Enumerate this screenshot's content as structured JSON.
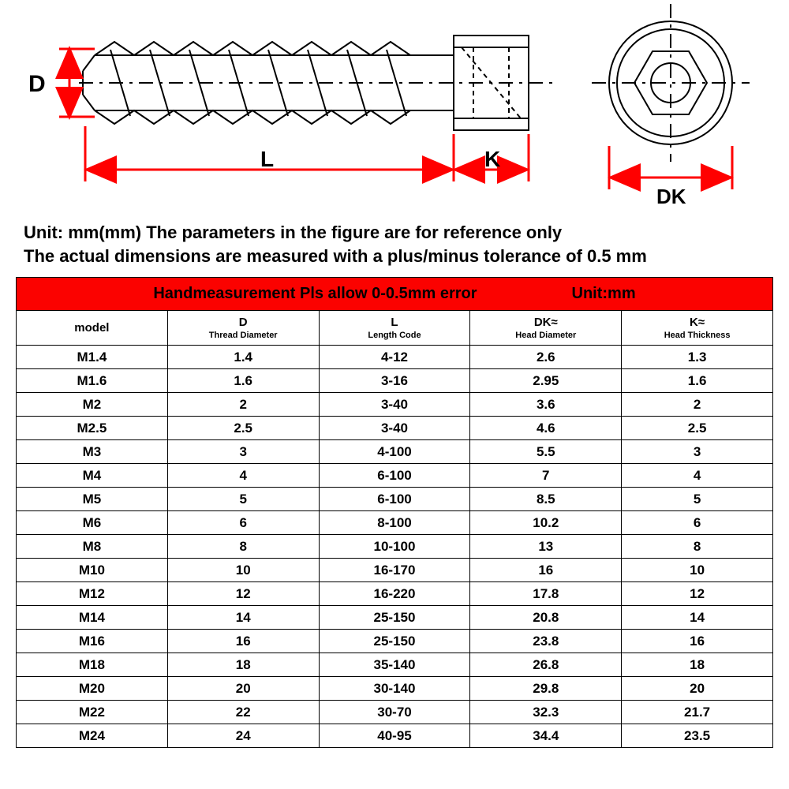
{
  "diagram": {
    "labels": {
      "D": "D",
      "L": "L",
      "K": "K",
      "DK": "DK"
    },
    "colors": {
      "line": "#000000",
      "dimension": "#ff0000",
      "red_fill": "#fb0200"
    },
    "stroke_width": 2,
    "dim_stroke_width": 3
  },
  "description": {
    "line1": "Unit: mm(mm) The parameters in the figure are for reference only",
    "line2": "The actual dimensions are measured with a plus/minus tolerance of 0.5 mm"
  },
  "table": {
    "banner": {
      "main": "Handmeasurement Pls allow 0-0.5mm error",
      "unit": "Unit:mm"
    },
    "columns": [
      {
        "title": "model",
        "sub": ""
      },
      {
        "title": "D",
        "sub": "Thread Diameter"
      },
      {
        "title": "L",
        "sub": "Length Code"
      },
      {
        "title": "DK≈",
        "sub": "Head Diameter"
      },
      {
        "title": "K≈",
        "sub": "Head Thickness"
      }
    ],
    "rows": [
      [
        "M1.4",
        "1.4",
        "4-12",
        "2.6",
        "1.3"
      ],
      [
        "M1.6",
        "1.6",
        "3-16",
        "2.95",
        "1.6"
      ],
      [
        "M2",
        "2",
        "3-40",
        "3.6",
        "2"
      ],
      [
        "M2.5",
        "2.5",
        "3-40",
        "4.6",
        "2.5"
      ],
      [
        "M3",
        "3",
        "4-100",
        "5.5",
        "3"
      ],
      [
        "M4",
        "4",
        "6-100",
        "7",
        "4"
      ],
      [
        "M5",
        "5",
        "6-100",
        "8.5",
        "5"
      ],
      [
        "M6",
        "6",
        "8-100",
        "10.2",
        "6"
      ],
      [
        "M8",
        "8",
        "10-100",
        "13",
        "8"
      ],
      [
        "M10",
        "10",
        "16-170",
        "16",
        "10"
      ],
      [
        "M12",
        "12",
        "16-220",
        "17.8",
        "12"
      ],
      [
        "M14",
        "14",
        "25-150",
        "20.8",
        "14"
      ],
      [
        "M16",
        "16",
        "25-150",
        "23.8",
        "16"
      ],
      [
        "M18",
        "18",
        "35-140",
        "26.8",
        "18"
      ],
      [
        "M20",
        "20",
        "30-140",
        "29.8",
        "20"
      ],
      [
        "M22",
        "22",
        "30-70",
        "32.3",
        "21.7"
      ],
      [
        "M24",
        "24",
        "40-95",
        "34.4",
        "23.5"
      ]
    ],
    "col_widths_pct": [
      20,
      20,
      20,
      20,
      20
    ],
    "text_color": "#000000",
    "border_color": "#000000"
  }
}
